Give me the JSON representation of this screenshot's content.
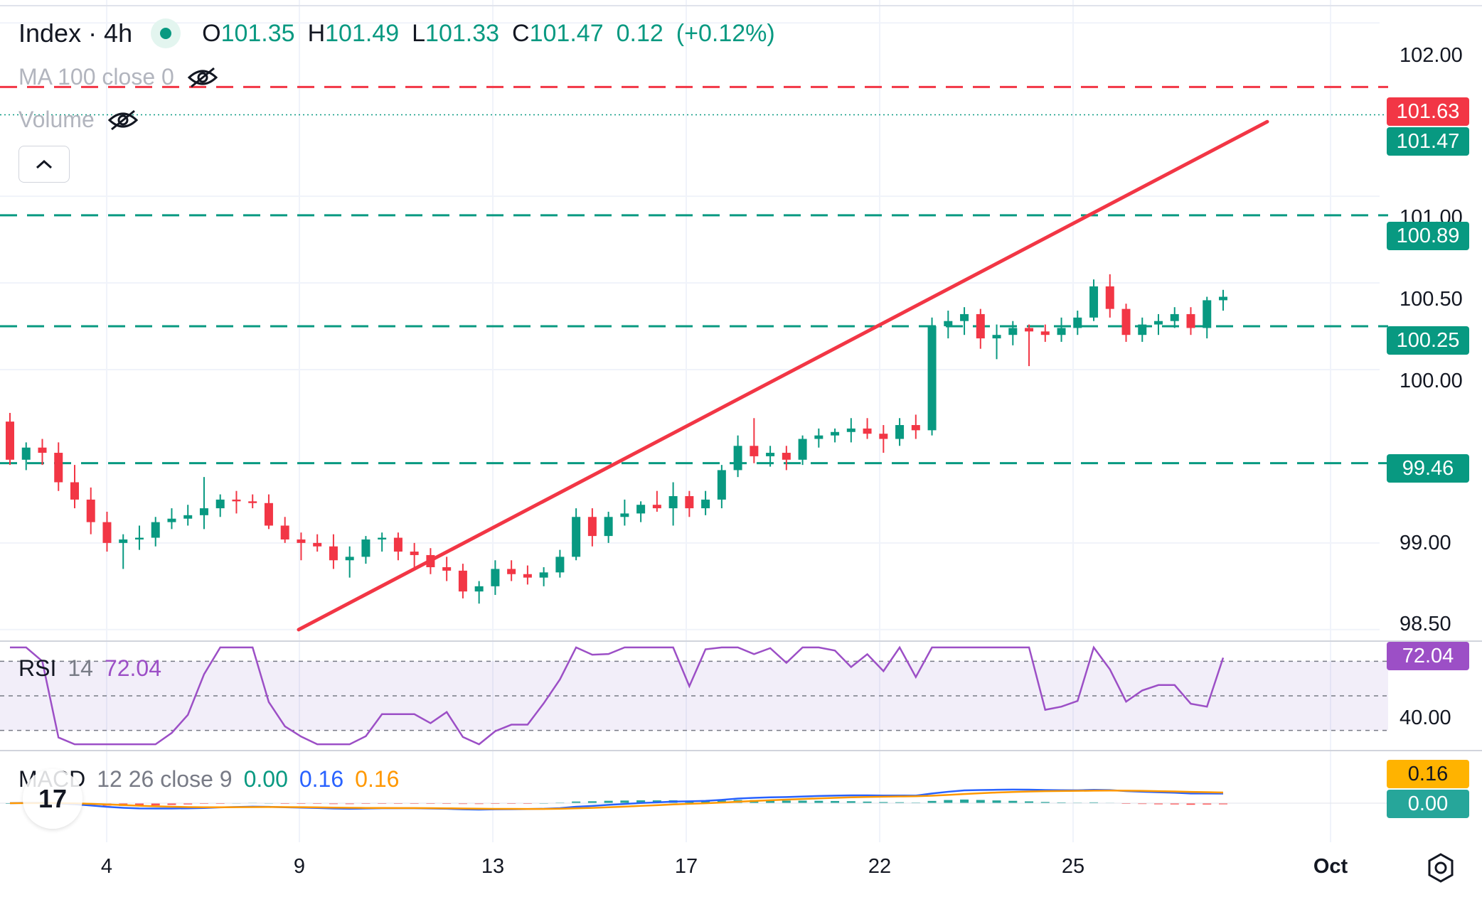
{
  "header": {
    "symbol": "Index · 4h",
    "ohlc": {
      "o_label": "O",
      "o_value": "101.35",
      "h_label": "H",
      "h_value": "101.49",
      "l_label": "L",
      "l_value": "101.33",
      "c_label": "C",
      "c_value": "101.47",
      "change": "0.12",
      "change_pct": "(+0.12%)"
    },
    "ma_label": "MA 100 close 0",
    "volume_label": "Volume"
  },
  "rsi": {
    "name": "RSI",
    "period": "14",
    "value": "72.04"
  },
  "macd": {
    "name": "MACD",
    "params": "12 26 close 9",
    "hist": "0.00",
    "macd": "0.16",
    "signal": "0.16"
  },
  "colors": {
    "up": "#089981",
    "down": "#f23645",
    "rsi": "#9c4fc6",
    "macd": "#2962ff",
    "signal": "#ff9800"
  },
  "chart_data": {
    "type": "candlestick",
    "interval": "4h",
    "x_ticks": [
      "4",
      "9",
      "13",
      "17",
      "22",
      "25",
      "Oct"
    ],
    "y_ticks": [
      "102.00",
      "101.00",
      "100.50",
      "100.00",
      "99.00",
      "98.50"
    ],
    "price_labels": {
      "resistance": "101.63",
      "last": "101.47",
      "support_1": "100.89",
      "support_2": "100.25",
      "support_3": "99.46",
      "rsi_last": "72.04",
      "rsi_axis": "40.00",
      "macd_value": "0.16",
      "hist_value": "0.00"
    },
    "horizontal_levels": [
      {
        "value": 101.63,
        "style": "dashed",
        "color": "#f23645"
      },
      {
        "value": 100.89,
        "style": "dashed",
        "color": "#089981"
      },
      {
        "value": 100.25,
        "style": "dashed",
        "color": "#089981"
      },
      {
        "value": 99.46,
        "style": "dashed",
        "color": "#089981"
      }
    ],
    "trendline": {
      "from": {
        "candle": 75,
        "price": 98.5
      },
      "to": {
        "candle": 322,
        "price": 101.43
      },
      "color": "#f23645"
    },
    "ylim": [
      98.45,
      102.05
    ],
    "candles": [
      [
        99.7,
        99.75,
        99.45,
        99.48
      ],
      [
        99.48,
        99.58,
        99.42,
        99.55
      ],
      [
        99.55,
        99.6,
        99.45,
        99.52
      ],
      [
        99.52,
        99.58,
        99.3,
        99.35
      ],
      [
        99.35,
        99.45,
        99.2,
        99.25
      ],
      [
        99.25,
        99.32,
        99.05,
        99.12
      ],
      [
        99.12,
        99.18,
        98.95,
        99.0
      ],
      [
        99.0,
        99.05,
        98.85,
        99.02
      ],
      [
        99.02,
        99.1,
        98.96,
        99.03
      ],
      [
        99.03,
        99.15,
        98.98,
        99.12
      ],
      [
        99.12,
        99.2,
        99.08,
        99.14
      ],
      [
        99.14,
        99.22,
        99.1,
        99.16
      ],
      [
        99.16,
        99.38,
        99.08,
        99.2
      ],
      [
        99.2,
        99.28,
        99.15,
        99.25
      ],
      [
        99.25,
        99.3,
        99.17,
        99.24
      ],
      [
        99.24,
        99.28,
        99.2,
        99.23
      ],
      [
        99.23,
        99.28,
        99.08,
        99.1
      ],
      [
        99.1,
        99.15,
        99.0,
        99.02
      ],
      [
        99.02,
        99.06,
        98.9,
        99.0
      ],
      [
        99.0,
        99.05,
        98.95,
        98.98
      ],
      [
        98.98,
        99.05,
        98.85,
        98.9
      ],
      [
        98.9,
        98.98,
        98.8,
        98.92
      ],
      [
        98.92,
        99.04,
        98.88,
        99.02
      ],
      [
        99.02,
        99.06,
        98.95,
        99.03
      ],
      [
        99.03,
        99.06,
        98.9,
        98.95
      ],
      [
        98.95,
        99.0,
        98.86,
        98.93
      ],
      [
        98.93,
        98.97,
        98.82,
        98.86
      ],
      [
        98.86,
        98.92,
        98.78,
        98.84
      ],
      [
        98.84,
        98.88,
        98.68,
        98.72
      ],
      [
        98.72,
        98.78,
        98.65,
        98.75
      ],
      [
        98.75,
        98.9,
        98.7,
        98.85
      ],
      [
        98.85,
        98.9,
        98.78,
        98.82
      ],
      [
        98.82,
        98.87,
        98.76,
        98.8
      ],
      [
        98.8,
        98.86,
        98.75,
        98.83
      ],
      [
        98.83,
        98.96,
        98.8,
        98.92
      ],
      [
        98.92,
        99.2,
        98.9,
        99.15
      ],
      [
        99.15,
        99.2,
        98.98,
        99.04
      ],
      [
        99.04,
        99.18,
        99.0,
        99.15
      ],
      [
        99.15,
        99.25,
        99.1,
        99.17
      ],
      [
        99.17,
        99.24,
        99.12,
        99.22
      ],
      [
        99.22,
        99.3,
        99.18,
        99.2
      ],
      [
        99.2,
        99.35,
        99.1,
        99.27
      ],
      [
        99.27,
        99.3,
        99.15,
        99.2
      ],
      [
        99.2,
        99.3,
        99.16,
        99.25
      ],
      [
        99.25,
        99.45,
        99.2,
        99.42
      ],
      [
        99.42,
        99.62,
        99.38,
        99.56
      ],
      [
        99.56,
        99.72,
        99.46,
        99.5
      ],
      [
        99.5,
        99.56,
        99.44,
        99.52
      ],
      [
        99.52,
        99.56,
        99.42,
        99.48
      ],
      [
        99.48,
        99.62,
        99.45,
        99.6
      ],
      [
        99.6,
        99.66,
        99.55,
        99.62
      ],
      [
        99.62,
        99.66,
        99.58,
        99.64
      ],
      [
        99.64,
        99.72,
        99.58,
        99.66
      ],
      [
        99.66,
        99.72,
        99.6,
        99.63
      ],
      [
        99.63,
        99.68,
        99.52,
        99.6
      ],
      [
        99.6,
        99.72,
        99.56,
        99.68
      ],
      [
        99.68,
        99.74,
        99.6,
        99.65
      ],
      [
        99.65,
        100.3,
        99.62,
        100.25
      ],
      [
        100.25,
        100.34,
        100.18,
        100.28
      ],
      [
        100.28,
        100.36,
        100.2,
        100.32
      ],
      [
        100.32,
        100.35,
        100.12,
        100.18
      ],
      [
        100.18,
        100.26,
        100.06,
        100.2
      ],
      [
        100.2,
        100.28,
        100.14,
        100.24
      ],
      [
        100.24,
        100.26,
        100.02,
        100.22
      ],
      [
        100.22,
        100.26,
        100.16,
        100.2
      ],
      [
        100.2,
        100.3,
        100.16,
        100.24
      ],
      [
        100.24,
        100.34,
        100.2,
        100.3
      ],
      [
        100.3,
        100.52,
        100.28,
        100.48
      ],
      [
        100.48,
        100.55,
        100.3,
        100.35
      ],
      [
        100.35,
        100.38,
        100.16,
        100.2
      ],
      [
        100.2,
        100.3,
        100.16,
        100.26
      ],
      [
        100.26,
        100.32,
        100.2,
        100.28
      ],
      [
        100.28,
        100.36,
        100.24,
        100.32
      ],
      [
        100.32,
        100.36,
        100.2,
        100.24
      ],
      [
        100.24,
        100.42,
        100.18,
        100.4
      ],
      [
        100.4,
        100.46,
        100.34,
        100.42
      ]
    ],
    "rsi": {
      "ylim": [
        20,
        80
      ],
      "levels": [
        70,
        50,
        30
      ],
      "axis_tick": "40.00",
      "last": 72.04
    },
    "macd": {
      "last_macd": 0.16,
      "last_signal": 0.16,
      "last_hist": 0.0
    }
  }
}
